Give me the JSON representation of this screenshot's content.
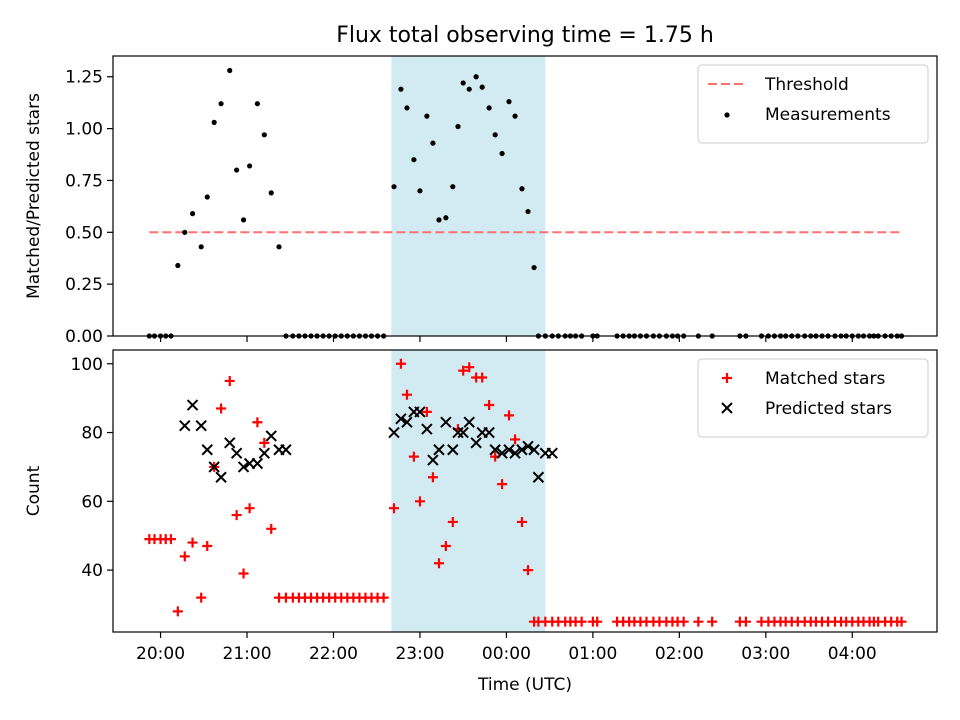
{
  "chart_data": [
    {
      "type": "scatter",
      "title": "Flux total observing time = 1.75 h",
      "ylabel": "Matched/Predicted stars",
      "xlabel": "",
      "x_unit": "hours (19 = 19:00, 24 = 00:00, 28 = 04:00)",
      "xlim": [
        19.45,
        28.98
      ],
      "ylim": [
        0,
        1.35
      ],
      "yticks": [
        0.0,
        0.25,
        0.5,
        0.75,
        1.0,
        1.25
      ],
      "ytick_labels": [
        "0.00",
        "0.25",
        "0.50",
        "0.75",
        "1.00",
        "1.25"
      ],
      "shaded_x": [
        22.67,
        24.45
      ],
      "shaded_color": "#add8e6",
      "grid": false,
      "legend_position": "upper right",
      "threshold": {
        "name": "Threshold",
        "value": 0.5,
        "x": [
          19.87,
          28.55
        ],
        "color": "#ff7070"
      },
      "series": [
        {
          "name": "Measurements",
          "color": "#000000",
          "marker": "dot",
          "x": [
            19.87,
            19.93,
            20.0,
            20.06,
            20.12,
            20.2,
            20.28,
            20.37,
            20.47,
            20.54,
            20.62,
            20.7,
            20.8,
            20.88,
            20.96,
            21.03,
            21.12,
            21.2,
            21.28,
            21.37,
            21.45,
            21.53,
            21.6,
            21.67,
            21.74,
            21.81,
            21.88,
            21.95,
            22.02,
            22.09,
            22.16,
            22.23,
            22.3,
            22.37,
            22.44,
            22.51,
            22.58,
            22.7,
            22.78,
            22.85,
            22.93,
            23.0,
            23.08,
            23.15,
            23.22,
            23.3,
            23.38,
            23.44,
            23.5,
            23.57,
            23.65,
            23.72,
            23.8,
            23.87,
            23.95,
            24.03,
            24.1,
            24.18,
            24.25,
            24.32,
            24.37,
            24.45,
            24.53,
            24.6,
            24.68,
            24.74,
            24.8,
            24.87,
            25.0,
            25.05,
            25.28,
            25.35,
            25.42,
            25.48,
            25.55,
            25.62,
            25.7,
            25.77,
            25.85,
            25.92,
            25.98,
            26.05,
            26.22,
            26.38,
            26.7,
            26.77,
            26.95,
            27.03,
            27.1,
            27.17,
            27.23,
            27.3,
            27.37,
            27.45,
            27.52,
            27.58,
            27.65,
            27.72,
            27.8,
            27.87,
            27.93,
            28.0,
            28.07,
            28.13,
            28.2,
            28.25,
            28.3,
            28.38,
            28.45,
            28.52,
            28.57
          ],
          "y": [
            0,
            0,
            0,
            0,
            0,
            0.34,
            0.5,
            0.59,
            0.43,
            0.67,
            1.03,
            1.12,
            1.28,
            0.8,
            0.56,
            0.82,
            1.12,
            0.97,
            0.69,
            0.43,
            0,
            0,
            0,
            0,
            0,
            0,
            0,
            0,
            0,
            0,
            0,
            0,
            0,
            0,
            0,
            0,
            0,
            0.72,
            1.19,
            1.1,
            0.85,
            0.7,
            1.06,
            0.93,
            0.56,
            0.57,
            0.72,
            1.01,
            1.22,
            1.19,
            1.25,
            1.2,
            1.1,
            0.97,
            0.88,
            1.13,
            1.06,
            0.71,
            0.6,
            0.33,
            0,
            0,
            0,
            0,
            0,
            0,
            0,
            0,
            0,
            0,
            0,
            0,
            0,
            0,
            0,
            0,
            0,
            0,
            0,
            0,
            0,
            0,
            0,
            0,
            0,
            0,
            0,
            0,
            0,
            0,
            0,
            0,
            0,
            0,
            0,
            0,
            0,
            0,
            0,
            0,
            0,
            0,
            0,
            0,
            0,
            0,
            0,
            0,
            0,
            0,
            0
          ]
        }
      ]
    },
    {
      "type": "scatter",
      "title": "",
      "ylabel": "Count",
      "xlabel": "Time (UTC)",
      "x_unit": "hours (19 = 19:00, 24 = 00:00, 28 = 04:00)",
      "xlim": [
        19.45,
        28.98
      ],
      "ylim": [
        22,
        104
      ],
      "yticks": [
        40,
        60,
        80,
        100
      ],
      "ytick_labels": [
        "40",
        "60",
        "80",
        "100"
      ],
      "xticks": [
        20,
        21,
        22,
        23,
        24,
        25,
        26,
        27,
        28
      ],
      "xtick_labels": [
        "20:00",
        "21:00",
        "22:00",
        "23:00",
        "00:00",
        "01:00",
        "02:00",
        "03:00",
        "04:00"
      ],
      "shaded_x": [
        22.67,
        24.45
      ],
      "shaded_color": "#add8e6",
      "grid": false,
      "legend_position": "upper right",
      "series": [
        {
          "name": "Matched stars",
          "color": "#ff0000",
          "marker": "plus",
          "x": [
            19.87,
            19.93,
            20.0,
            20.06,
            20.12,
            20.2,
            20.28,
            20.37,
            20.47,
            20.54,
            20.62,
            20.7,
            20.8,
            20.88,
            20.96,
            21.03,
            21.12,
            21.2,
            21.28,
            21.37,
            21.45,
            21.53,
            21.6,
            21.67,
            21.74,
            21.81,
            21.88,
            21.95,
            22.02,
            22.09,
            22.16,
            22.23,
            22.3,
            22.37,
            22.44,
            22.51,
            22.58,
            22.7,
            22.78,
            22.85,
            22.93,
            23.0,
            23.08,
            23.15,
            23.22,
            23.3,
            23.38,
            23.44,
            23.5,
            23.57,
            23.65,
            23.72,
            23.8,
            23.87,
            23.95,
            24.03,
            24.1,
            24.18,
            24.25,
            24.32,
            24.37,
            24.45,
            24.53,
            24.6,
            24.68,
            24.74,
            24.8,
            24.87,
            25.0,
            25.05,
            25.28,
            25.35,
            25.42,
            25.48,
            25.55,
            25.62,
            25.7,
            25.77,
            25.85,
            25.92,
            25.98,
            26.05,
            26.22,
            26.38,
            26.7,
            26.77,
            26.95,
            27.03,
            27.1,
            27.17,
            27.23,
            27.3,
            27.37,
            27.45,
            27.52,
            27.58,
            27.65,
            27.72,
            27.8,
            27.87,
            27.93,
            28.0,
            28.07,
            28.13,
            28.2,
            28.25,
            28.3,
            28.38,
            28.45,
            28.52,
            28.57
          ],
          "y": [
            49,
            49,
            49,
            49,
            49,
            28,
            44,
            48,
            32,
            47,
            70,
            87,
            95,
            56,
            39,
            58,
            83,
            77,
            52,
            32,
            32,
            32,
            32,
            32,
            32,
            32,
            32,
            32,
            32,
            32,
            32,
            32,
            32,
            32,
            32,
            32,
            32,
            58,
            100,
            91,
            73,
            60,
            86,
            67,
            42,
            47,
            54,
            81,
            98,
            99,
            96,
            96,
            88,
            73,
            65,
            85,
            78,
            54,
            40,
            25,
            25,
            25,
            25,
            25,
            25,
            25,
            25,
            25,
            25,
            25,
            25,
            25,
            25,
            25,
            25,
            25,
            25,
            25,
            25,
            25,
            25,
            25,
            25,
            25,
            25,
            25,
            25,
            25,
            25,
            25,
            25,
            25,
            25,
            25,
            25,
            25,
            25,
            25,
            25,
            25,
            25,
            25,
            25,
            25,
            25,
            25,
            25,
            25,
            25,
            25,
            25
          ]
        },
        {
          "name": "Predicted stars",
          "color": "#000000",
          "marker": "x",
          "x": [
            20.28,
            20.37,
            20.47,
            20.54,
            20.62,
            20.7,
            20.8,
            20.88,
            20.96,
            21.03,
            21.12,
            21.2,
            21.28,
            21.37,
            21.45,
            22.7,
            22.78,
            22.85,
            22.93,
            23.0,
            23.08,
            23.15,
            23.22,
            23.3,
            23.38,
            23.44,
            23.5,
            23.57,
            23.65,
            23.72,
            23.8,
            23.87,
            23.95,
            24.03,
            24.1,
            24.18,
            24.25,
            24.32,
            24.37,
            24.45,
            24.53
          ],
          "y": [
            82,
            88,
            82,
            75,
            70,
            67,
            77,
            74,
            70,
            71,
            71,
            74,
            79,
            75,
            75,
            80,
            84,
            83,
            86,
            86,
            81,
            72,
            75,
            83,
            75,
            80,
            80,
            83,
            77,
            80,
            80,
            75,
            74,
            75,
            74,
            75,
            76,
            75,
            67,
            74,
            74
          ]
        }
      ]
    }
  ]
}
